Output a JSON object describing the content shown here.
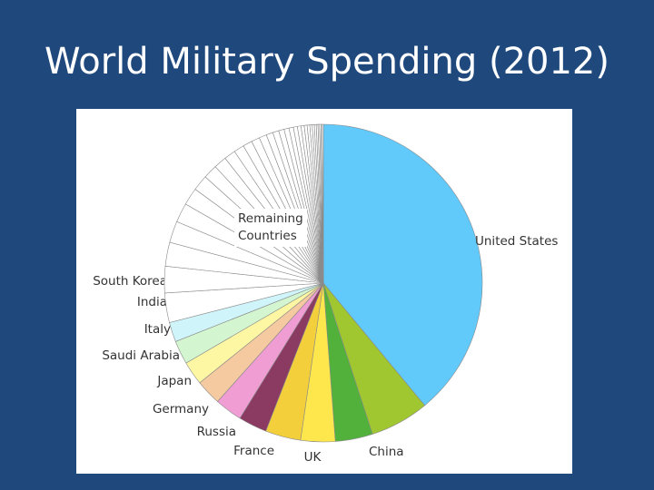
{
  "slide": {
    "title": "World Military Spending (2012)"
  },
  "chart_data": {
    "type": "pie",
    "title": "World Military Spending (2012)",
    "unit": "percent of world total",
    "start_angle_deg": 0,
    "direction": "clockwise",
    "slices": [
      {
        "label": "United States",
        "value": 39.0,
        "color": "#62c9fb"
      },
      {
        "label": "China",
        "value": 6.0,
        "color": "#a0c630"
      },
      {
        "label": "UK",
        "value": 3.8,
        "color": "#52b13a"
      },
      {
        "label": "France",
        "value": 3.5,
        "color": "#fde74c"
      },
      {
        "label": "Russia",
        "value": 3.6,
        "color": "#f4cf3c"
      },
      {
        "label": "Germany",
        "value": 2.9,
        "color": "#8b3a62"
      },
      {
        "label": "Japan",
        "value": 2.8,
        "color": "#ef9dd3"
      },
      {
        "label": "Saudi Arabia",
        "value": 2.6,
        "color": "#f5caa0"
      },
      {
        "label": "Italy",
        "value": 2.4,
        "color": "#fdf7a3"
      },
      {
        "label": "India",
        "value": 2.4,
        "color": "#d3f5cf"
      },
      {
        "label": "South Korea",
        "value": 2.0,
        "color": "#cff5fb"
      }
    ],
    "remaining": {
      "label_lines": [
        "Remaining",
        "Countries"
      ],
      "value": 29.0,
      "count": 32,
      "color": "#ffffff"
    }
  }
}
